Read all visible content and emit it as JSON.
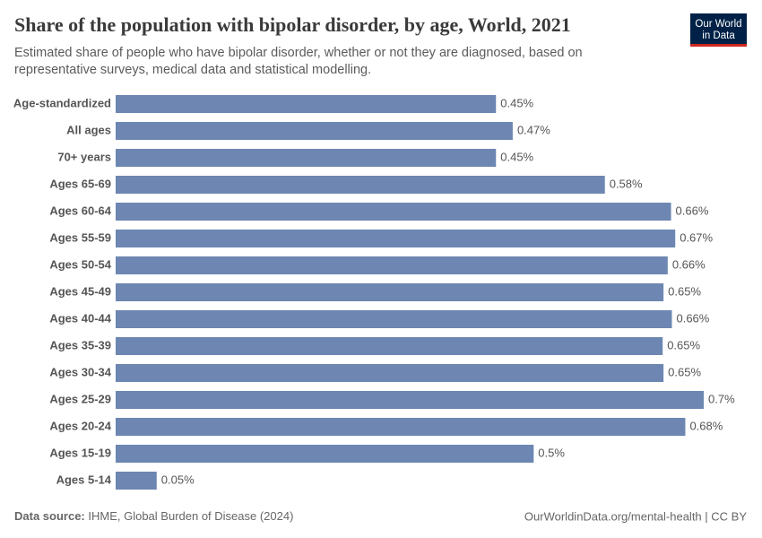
{
  "chart_data": {
    "type": "hbar",
    "title": "Share of the population with bipolar disorder, by age, World, 2021",
    "subtitle": [
      "Estimated share of people who have bipolar disorder, whether or not they are diagnosed, based on",
      "representative surveys, medical data and statistical modelling."
    ],
    "categories": [
      "Age-standardized",
      "All ages",
      "70+ years",
      "Ages 65-69",
      "Ages 60-64",
      "Ages 55-59",
      "Ages 50-54",
      "Ages 45-49",
      "Ages 40-44",
      "Ages 35-39",
      "Ages 30-34",
      "Ages 25-29",
      "Ages 20-24",
      "Ages 15-19",
      "Ages 5-14"
    ],
    "values": [
      0.454,
      0.474,
      0.454,
      0.584,
      0.663,
      0.668,
      0.659,
      0.654,
      0.664,
      0.653,
      0.654,
      0.702,
      0.68,
      0.499,
      0.049
    ],
    "value_labels": [
      "0.45%",
      "0.47%",
      "0.45%",
      "0.58%",
      "0.66%",
      "0.67%",
      "0.66%",
      "0.65%",
      "0.66%",
      "0.65%",
      "0.65%",
      "0.7%",
      "0.68%",
      "0.5%",
      "0.05%"
    ],
    "color": "#6d87b2"
  },
  "logo": [
    "Our World",
    "in Data"
  ],
  "footer": {
    "source_label": "Data source:",
    "source": "IHME, Global Burden of Disease (2024)",
    "right": "OurWorldinData.org/mental-health | CC BY"
  }
}
